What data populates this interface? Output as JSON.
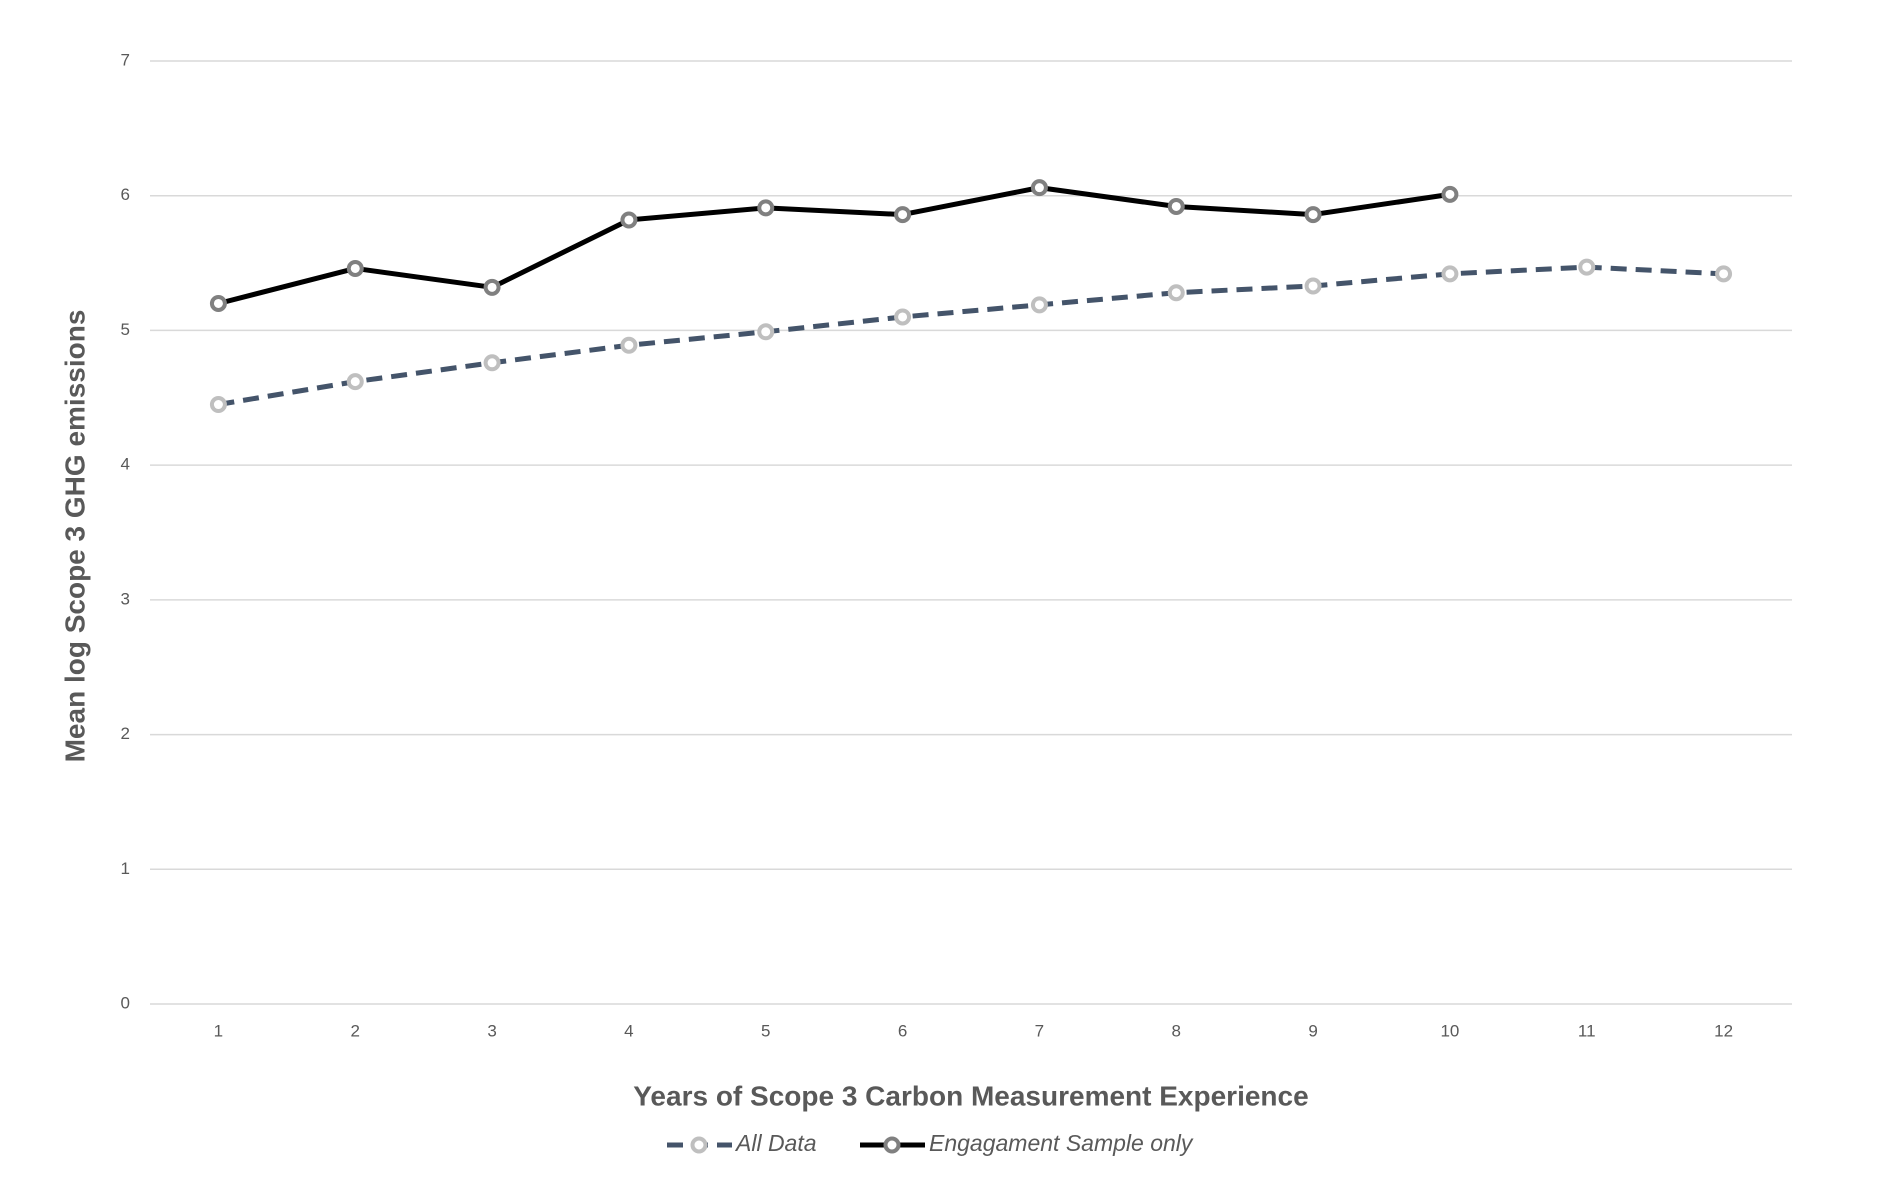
{
  "chart_data": {
    "type": "line",
    "x_label": "Years of Scope 3 Carbon Measurement Experience",
    "y_label": "Mean log Scope 3 GHG emissions",
    "categories": [
      "1",
      "2",
      "3",
      "4",
      "5",
      "6",
      "7",
      "8",
      "9",
      "10",
      "11",
      "12"
    ],
    "series": [
      {
        "name": "All Data",
        "color": "#44546a",
        "line_style": "dashed",
        "marker_color": "#bfbfbf",
        "values": [
          4.45,
          4.62,
          4.76,
          4.89,
          4.99,
          5.1,
          5.19,
          5.28,
          5.33,
          5.42,
          5.47,
          5.42
        ]
      },
      {
        "name": "Engagament Sample only",
        "color": "#000000",
        "line_style": "solid",
        "marker_color": "#808080",
        "values": [
          5.2,
          5.46,
          5.32,
          5.82,
          5.91,
          5.86,
          6.06,
          5.92,
          5.86,
          6.01,
          null,
          null
        ]
      }
    ],
    "ylim": [
      0,
      7
    ],
    "yticks": [
      0,
      1,
      2,
      3,
      4,
      5,
      6,
      7
    ],
    "grid": true,
    "legend": "bottom"
  }
}
